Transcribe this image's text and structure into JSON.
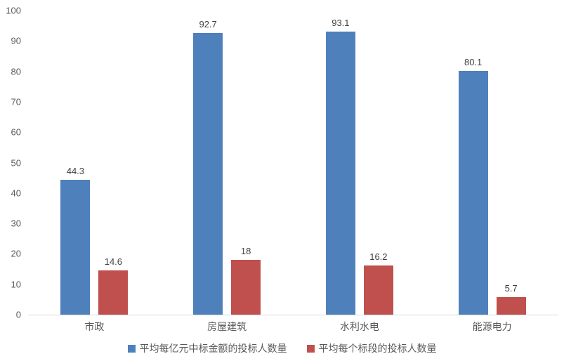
{
  "chart_data": {
    "type": "bar",
    "title": "",
    "categories": [
      "市政",
      "房屋建筑",
      "水利水电",
      "能源电力"
    ],
    "series": [
      {
        "name": "平均每亿元中标金额的投标人数量",
        "color": "#4E80BC",
        "values": [
          44.3,
          92.7,
          93.1,
          80.1
        ]
      },
      {
        "name": "平均每个标段的投标人数量",
        "color": "#C0504D",
        "values": [
          14.6,
          18,
          16.2,
          5.7
        ]
      }
    ],
    "ylim": [
      0,
      100
    ],
    "ytick_step": 10,
    "grid": false,
    "legend_position": "bottom",
    "axis_line_color": "#D9D9D9",
    "tick_label_color": "#595959",
    "value_label_color": "#404040"
  }
}
